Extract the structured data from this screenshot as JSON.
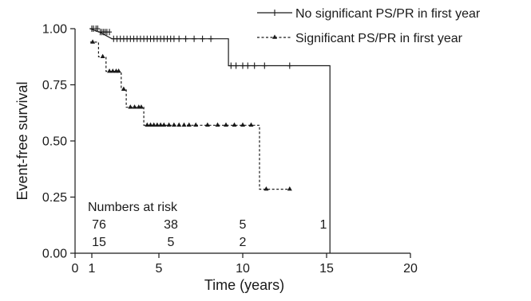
{
  "chart_data": {
    "type": "line",
    "subtype": "kaplan-meier-step",
    "title": "",
    "xlabel": "Time (years)",
    "ylabel": "Event-free survival",
    "xlim": [
      0,
      20
    ],
    "ylim": [
      0,
      1
    ],
    "x_ticks": [
      0,
      1,
      5,
      10,
      15,
      20
    ],
    "y_ticks": [
      0.0,
      0.25,
      0.5,
      0.75,
      1.0
    ],
    "x_tick_labels": [
      "0",
      "1",
      "5",
      "10",
      "15",
      "20"
    ],
    "y_tick_labels": [
      "0.00",
      "0.25",
      "0.50",
      "0.75",
      "1.00"
    ],
    "grid": false,
    "legend_position": "top-right",
    "series": [
      {
        "name": "No significant PS/PR in first year",
        "line_style": "solid",
        "censor_marker": "plus",
        "steps": [
          [
            0.9,
            1.0
          ],
          [
            1.45,
            0.985
          ],
          [
            2.2,
            0.955
          ],
          [
            9.15,
            0.955
          ],
          [
            9.15,
            0.835
          ],
          [
            15.2,
            0.835
          ],
          [
            15.2,
            0.0
          ]
        ],
        "censored": [
          [
            1.0,
            1.0
          ],
          [
            1.1,
            1.0
          ],
          [
            1.25,
            1.0
          ],
          [
            1.35,
            1.0
          ],
          [
            1.5,
            0.985
          ],
          [
            1.6,
            0.985
          ],
          [
            1.7,
            0.985
          ],
          [
            1.8,
            0.985
          ],
          [
            1.9,
            0.985
          ],
          [
            2.05,
            0.985
          ],
          [
            2.3,
            0.955
          ],
          [
            2.5,
            0.955
          ],
          [
            2.7,
            0.955
          ],
          [
            2.9,
            0.955
          ],
          [
            3.1,
            0.955
          ],
          [
            3.3,
            0.955
          ],
          [
            3.5,
            0.955
          ],
          [
            3.7,
            0.955
          ],
          [
            3.9,
            0.955
          ],
          [
            4.1,
            0.955
          ],
          [
            4.3,
            0.955
          ],
          [
            4.5,
            0.955
          ],
          [
            4.7,
            0.955
          ],
          [
            4.9,
            0.955
          ],
          [
            5.1,
            0.955
          ],
          [
            5.3,
            0.955
          ],
          [
            5.5,
            0.955
          ],
          [
            5.7,
            0.955
          ],
          [
            5.9,
            0.955
          ],
          [
            6.2,
            0.955
          ],
          [
            6.6,
            0.955
          ],
          [
            7.1,
            0.955
          ],
          [
            7.6,
            0.955
          ],
          [
            8.1,
            0.955
          ],
          [
            9.3,
            0.835
          ],
          [
            9.6,
            0.835
          ],
          [
            10.0,
            0.835
          ],
          [
            10.3,
            0.835
          ],
          [
            10.7,
            0.835
          ],
          [
            11.3,
            0.835
          ],
          [
            12.8,
            0.835
          ]
        ]
      },
      {
        "name": "Significant PS/PR in first year",
        "line_style": "dashed",
        "censor_marker": "triangle",
        "steps": [
          [
            0.9,
            0.94
          ],
          [
            1.4,
            0.94
          ],
          [
            1.4,
            0.875
          ],
          [
            1.85,
            0.875
          ],
          [
            1.85,
            0.81
          ],
          [
            2.75,
            0.81
          ],
          [
            2.75,
            0.73
          ],
          [
            3.05,
            0.73
          ],
          [
            3.05,
            0.65
          ],
          [
            4.1,
            0.65
          ],
          [
            4.1,
            0.57
          ],
          [
            11.0,
            0.57
          ],
          [
            11.0,
            0.285
          ],
          [
            12.8,
            0.285
          ]
        ],
        "censored": [
          [
            1.05,
            0.94
          ],
          [
            1.65,
            0.875
          ],
          [
            2.05,
            0.81
          ],
          [
            2.25,
            0.81
          ],
          [
            2.45,
            0.81
          ],
          [
            2.6,
            0.81
          ],
          [
            2.9,
            0.73
          ],
          [
            3.3,
            0.65
          ],
          [
            3.55,
            0.65
          ],
          [
            3.8,
            0.65
          ],
          [
            3.95,
            0.65
          ],
          [
            4.3,
            0.57
          ],
          [
            4.5,
            0.57
          ],
          [
            4.7,
            0.57
          ],
          [
            4.9,
            0.57
          ],
          [
            5.1,
            0.57
          ],
          [
            5.3,
            0.57
          ],
          [
            5.6,
            0.57
          ],
          [
            5.9,
            0.57
          ],
          [
            6.2,
            0.57
          ],
          [
            6.5,
            0.57
          ],
          [
            6.8,
            0.57
          ],
          [
            7.2,
            0.57
          ],
          [
            7.9,
            0.57
          ],
          [
            8.5,
            0.57
          ],
          [
            9.0,
            0.57
          ],
          [
            9.5,
            0.57
          ],
          [
            10.0,
            0.57
          ],
          [
            10.5,
            0.57
          ],
          [
            11.4,
            0.285
          ],
          [
            12.8,
            0.285
          ]
        ]
      }
    ],
    "risk_table": {
      "title": "Numbers at risk",
      "times": [
        1,
        5,
        10,
        15
      ],
      "rows": [
        {
          "series": "No significant PS/PR in first year",
          "counts": [
            "76",
            "38",
            "5",
            "1"
          ]
        },
        {
          "series": "Significant PS/PR in first year",
          "counts": [
            "15",
            "5",
            "2",
            ""
          ]
        }
      ]
    }
  }
}
